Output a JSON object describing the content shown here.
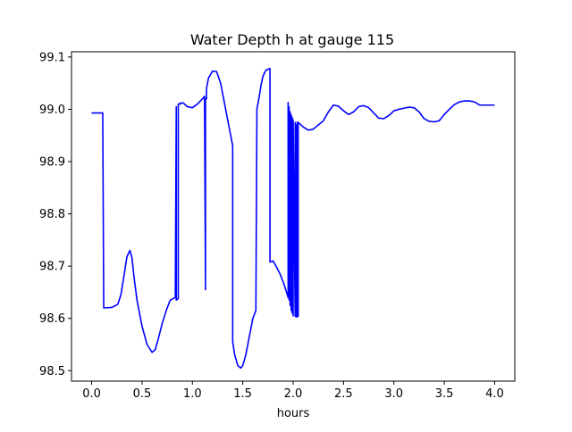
{
  "chart_data": {
    "type": "line",
    "title": "Water Depth h at gauge 115",
    "xlabel": "hours",
    "ylabel": "",
    "xlim": [
      -0.2,
      4.2
    ],
    "ylim": [
      98.48,
      99.11
    ],
    "xticks": [
      0.0,
      0.5,
      1.0,
      1.5,
      2.0,
      2.5,
      3.0,
      3.5,
      4.0
    ],
    "xtick_labels": [
      "0.0",
      "0.5",
      "1.0",
      "1.5",
      "2.0",
      "2.5",
      "3.0",
      "3.5",
      "4.0"
    ],
    "yticks": [
      98.5,
      98.6,
      98.7,
      98.8,
      98.9,
      99.0,
      99.1
    ],
    "ytick_labels": [
      "98.5",
      "98.6",
      "98.7",
      "98.8",
      "98.9",
      "99.0",
      "99.1"
    ],
    "grid": false,
    "legend": "none",
    "series": [
      {
        "color": "#0000ff",
        "x": [
          0.0,
          0.11,
          0.11,
          0.12,
          0.2,
          0.26,
          0.29,
          0.32,
          0.35,
          0.38,
          0.4,
          0.42,
          0.45,
          0.5,
          0.55,
          0.6,
          0.63,
          0.66,
          0.7,
          0.74,
          0.78,
          0.83,
          0.84,
          0.84,
          0.86,
          0.86,
          0.88,
          0.88,
          0.91,
          0.95,
          1.0,
          1.05,
          1.1,
          1.12,
          1.13,
          1.13,
          1.14,
          1.14,
          1.16,
          1.2,
          1.24,
          1.28,
          1.32,
          1.36,
          1.4,
          1.4,
          1.42,
          1.45,
          1.48,
          1.5,
          1.53,
          1.56,
          1.6,
          1.63,
          1.64,
          1.64,
          1.66,
          1.68,
          1.7,
          1.73,
          1.77,
          1.77,
          1.78,
          1.8,
          1.83,
          1.87,
          1.91,
          1.95,
          1.95,
          1.96,
          1.96,
          1.97,
          1.97,
          1.98,
          1.98,
          1.99,
          1.99,
          2.0,
          2.0,
          2.02,
          2.02,
          2.03,
          2.03,
          2.04,
          2.04,
          2.05,
          2.05,
          2.1,
          2.15,
          2.2,
          2.25,
          2.3,
          2.35,
          2.4,
          2.45,
          2.5,
          2.55,
          2.6,
          2.65,
          2.7,
          2.75,
          2.8,
          2.85,
          2.9,
          2.95,
          3.0,
          3.05,
          3.1,
          3.15,
          3.2,
          3.25,
          3.3,
          3.35,
          3.4,
          3.45,
          3.5,
          3.55,
          3.6,
          3.65,
          3.7,
          3.75,
          3.8,
          3.85,
          3.9,
          3.95,
          4.0
        ],
        "y": [
          98.993,
          98.993,
          98.993,
          98.62,
          98.621,
          98.627,
          98.645,
          98.68,
          98.718,
          98.73,
          98.716,
          98.68,
          98.635,
          98.585,
          98.55,
          98.535,
          98.54,
          98.56,
          98.59,
          98.615,
          98.635,
          98.64,
          99.005,
          98.635,
          98.638,
          99.01,
          99.01,
          99.012,
          99.012,
          99.005,
          99.003,
          99.01,
          99.02,
          99.025,
          98.655,
          99.02,
          99.02,
          99.04,
          99.06,
          99.073,
          99.072,
          99.05,
          99.01,
          98.97,
          98.93,
          98.555,
          98.53,
          98.51,
          98.505,
          98.51,
          98.53,
          98.56,
          98.6,
          98.615,
          98.988,
          99.0,
          99.02,
          99.045,
          99.063,
          99.075,
          99.078,
          98.708,
          98.708,
          98.71,
          98.7,
          98.685,
          98.665,
          98.64,
          99.013,
          98.635,
          99.005,
          98.625,
          98.995,
          98.615,
          98.99,
          98.61,
          98.985,
          98.605,
          98.98,
          98.604,
          98.975,
          98.603,
          98.97,
          98.603,
          98.975,
          98.604,
          98.975,
          98.966,
          98.96,
          98.962,
          98.97,
          98.978,
          98.995,
          99.008,
          99.006,
          98.997,
          98.99,
          98.995,
          99.005,
          99.007,
          99.003,
          98.993,
          98.983,
          98.982,
          98.988,
          98.997,
          99.0,
          99.002,
          99.004,
          99.003,
          98.995,
          98.982,
          98.977,
          98.976,
          98.978,
          98.99,
          99.0,
          99.009,
          99.014,
          99.016,
          99.016,
          99.014,
          99.008,
          99.008,
          99.008,
          99.008
        ]
      }
    ]
  }
}
